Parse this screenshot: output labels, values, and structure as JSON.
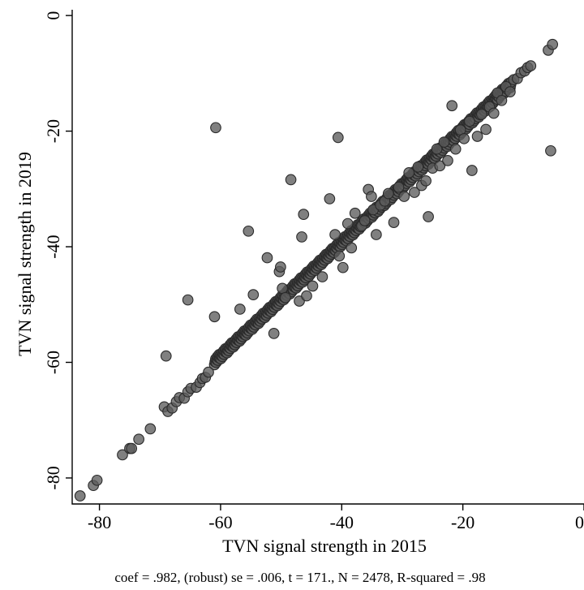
{
  "chart_data": {
    "type": "scatter",
    "title": "",
    "xlabel": "TVN signal strength in 2015",
    "ylabel": "TVN signal strength in 2019",
    "note": "coef = .982, (robust) se = .006, t = 171., N = 2478, R-squared = .98",
    "xlim": [
      -84.5,
      0
    ],
    "ylim": [
      -84.5,
      1
    ],
    "xticks": [
      -80,
      -60,
      -40,
      -20,
      0
    ],
    "yticks": [
      -80,
      -60,
      -40,
      -20,
      0
    ],
    "xtick_labels": [
      "-80",
      "-60",
      "-40",
      "-20",
      "0"
    ],
    "ytick_labels": [
      "-80",
      "-60",
      "-40",
      "-20",
      "0"
    ],
    "grid": false,
    "legend": "none",
    "marker_color": "#5c5c5c",
    "diagonal_band": {
      "slope": 0.982,
      "x_from": -61,
      "x_to": -12,
      "count": 520,
      "spread": 0.5
    },
    "points": [
      [
        -83.2,
        -83.1
      ],
      [
        -81.0,
        -81.3
      ],
      [
        -80.4,
        -80.4
      ],
      [
        -76.2,
        -76.0
      ],
      [
        -75.0,
        -74.9
      ],
      [
        -74.7,
        -74.9
      ],
      [
        -73.5,
        -73.3
      ],
      [
        -71.6,
        -71.5
      ],
      [
        -69.3,
        -67.7
      ],
      [
        -68.7,
        -68.5
      ],
      [
        -68.0,
        -67.9
      ],
      [
        -67.3,
        -66.8
      ],
      [
        -66.8,
        -66.1
      ],
      [
        -66.0,
        -66.2
      ],
      [
        -65.4,
        -65.1
      ],
      [
        -64.9,
        -64.5
      ],
      [
        -64.0,
        -64.3
      ],
      [
        -63.4,
        -63.5
      ],
      [
        -63.0,
        -62.8
      ],
      [
        -62.5,
        -62.6
      ],
      [
        -62.0,
        -61.7
      ],
      [
        -69.0,
        -58.9
      ],
      [
        -65.4,
        -49.2
      ],
      [
        -61.0,
        -52.1
      ],
      [
        -60.8,
        -19.4
      ],
      [
        -56.8,
        -50.8
      ],
      [
        -55.4,
        -37.3
      ],
      [
        -54.6,
        -48.3
      ],
      [
        -52.3,
        -41.9
      ],
      [
        -51.2,
        -55.0
      ],
      [
        -50.3,
        -44.3
      ],
      [
        -50.1,
        -43.5
      ],
      [
        -49.8,
        -47.2
      ],
      [
        -49.3,
        -48.8
      ],
      [
        -48.4,
        -28.4
      ],
      [
        -47.0,
        -49.4
      ],
      [
        -46.6,
        -38.3
      ],
      [
        -46.3,
        -34.4
      ],
      [
        -45.8,
        -48.5
      ],
      [
        -44.8,
        -46.8
      ],
      [
        -43.2,
        -45.2
      ],
      [
        -42.0,
        -31.7
      ],
      [
        -41.1,
        -37.9
      ],
      [
        -40.6,
        -21.1
      ],
      [
        -40.4,
        -41.6
      ],
      [
        -39.8,
        -43.6
      ],
      [
        -39.0,
        -36.0
      ],
      [
        -38.4,
        -40.2
      ],
      [
        -37.8,
        -34.2
      ],
      [
        -36.7,
        -36.4
      ],
      [
        -36.2,
        -35.5
      ],
      [
        -35.6,
        -30.1
      ],
      [
        -35.1,
        -31.3
      ],
      [
        -34.8,
        -33.6
      ],
      [
        -34.3,
        -37.9
      ],
      [
        -33.6,
        -32.8
      ],
      [
        -32.9,
        -32.1
      ],
      [
        -32.3,
        -30.8
      ],
      [
        -31.4,
        -35.8
      ],
      [
        -30.6,
        -29.7
      ],
      [
        -29.7,
        -31.3
      ],
      [
        -28.9,
        -27.2
      ],
      [
        -28.0,
        -30.6
      ],
      [
        -27.4,
        -26.2
      ],
      [
        -26.8,
        -29.4
      ],
      [
        -26.1,
        -28.6
      ],
      [
        -25.7,
        -34.8
      ],
      [
        -25.0,
        -26.4
      ],
      [
        -24.3,
        -23.1
      ],
      [
        -23.8,
        -26.0
      ],
      [
        -23.1,
        -21.9
      ],
      [
        -22.5,
        -25.1
      ],
      [
        -21.8,
        -15.6
      ],
      [
        -21.2,
        -23.1
      ],
      [
        -20.4,
        -19.8
      ],
      [
        -19.8,
        -21.3
      ],
      [
        -18.9,
        -18.3
      ],
      [
        -18.5,
        -26.8
      ],
      [
        -17.6,
        -20.9
      ],
      [
        -16.9,
        -17.1
      ],
      [
        -16.2,
        -19.7
      ],
      [
        -15.6,
        -15.8
      ],
      [
        -14.9,
        -16.9
      ],
      [
        -14.3,
        -13.4
      ],
      [
        -13.6,
        -14.7
      ],
      [
        -12.9,
        -12.3
      ],
      [
        -12.2,
        -13.2
      ],
      [
        -11.6,
        -11.1
      ],
      [
        -11.0,
        -10.9
      ],
      [
        -10.4,
        -9.9
      ],
      [
        -9.8,
        -9.6
      ],
      [
        -9.3,
        -9.0
      ],
      [
        -8.8,
        -8.7
      ],
      [
        -5.9,
        -6.0
      ],
      [
        -5.2,
        -5.0
      ],
      [
        -5.5,
        -23.4
      ]
    ]
  }
}
